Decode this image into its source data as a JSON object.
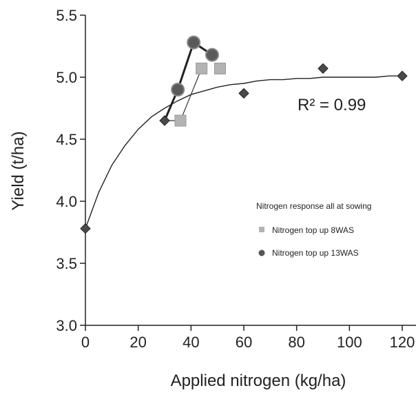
{
  "chart_data": {
    "type": "scatter",
    "title": "",
    "xlabel": "Applied nitrogen (kg/ha)",
    "ylabel": "Yield (t/ha)",
    "xlim": [
      0,
      125
    ],
    "ylim": [
      3.0,
      5.5
    ],
    "xticks": [
      0,
      20,
      40,
      60,
      80,
      100,
      120
    ],
    "yticks": [
      3.0,
      3.5,
      4.0,
      4.5,
      5.0,
      5.5
    ],
    "xtick_labels": [
      "0",
      "20",
      "40",
      "60",
      "80",
      "100",
      "120"
    ],
    "ytick_labels": [
      "3.0",
      "3.5",
      "4.0",
      "4.5",
      "5.0",
      "5.5"
    ],
    "annotation": "R² = 0.99",
    "legend_title": "Nitrogen response all at sowing",
    "series": [
      {
        "name": "Nitrogen response all at sowing",
        "marker": "diamond",
        "color": "#4a4a4a",
        "x": [
          0,
          30,
          60,
          90,
          120
        ],
        "y": [
          3.78,
          4.65,
          4.87,
          5.07,
          5.01
        ]
      },
      {
        "name": "Nitrogen top up 8WAS",
        "marker": "square",
        "color": "#b3b3b3",
        "x": [
          36,
          44,
          51
        ],
        "y": [
          4.65,
          5.07,
          5.07
        ]
      },
      {
        "name": "Nitrogen top up 13WAS",
        "marker": "circle",
        "color": "#5a5a5a",
        "x": [
          35,
          41,
          48
        ],
        "y": [
          4.9,
          5.28,
          5.18
        ]
      }
    ],
    "fit_curve": {
      "x": [
        0,
        5,
        10,
        15,
        20,
        25,
        30,
        35,
        40,
        45,
        50,
        55,
        60,
        65,
        70,
        75,
        80,
        85,
        90,
        95,
        100,
        105,
        110,
        115,
        120
      ],
      "y": [
        3.78,
        4.07,
        4.29,
        4.45,
        4.58,
        4.68,
        4.75,
        4.81,
        4.86,
        4.89,
        4.92,
        4.94,
        4.95,
        4.97,
        4.98,
        4.98,
        4.99,
        4.99,
        5.0,
        5.0,
        5.0,
        5.0,
        5.0,
        5.01,
        5.01
      ]
    },
    "grid": false,
    "legend_position": "right"
  }
}
